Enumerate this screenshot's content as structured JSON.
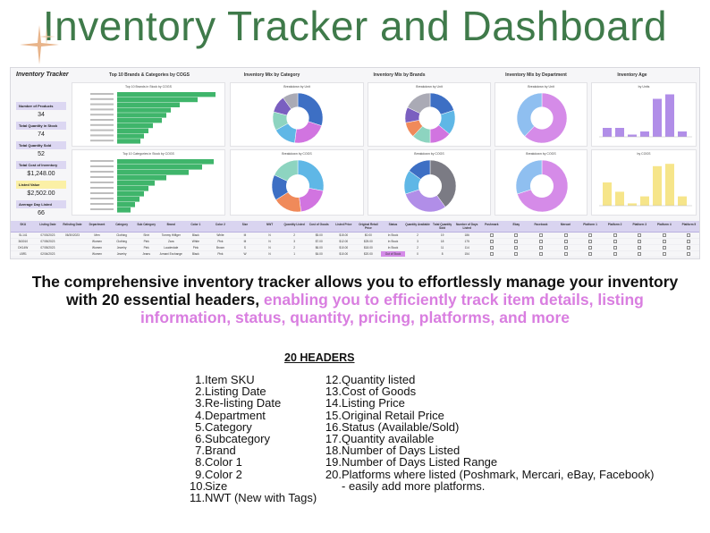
{
  "title": "Inventory Tracker and Dashboard",
  "dashboard": {
    "logo": "Inventory Tracker",
    "panels": [
      "Top 10 Brands & Categories by COGS",
      "Inventory Mix by Category",
      "Inventory Mix by Brands",
      "Inventory Mix by Department",
      "Inventory Age"
    ],
    "kpis": [
      {
        "label": "Number of Products",
        "value": "34",
        "color": "#dcd7f2"
      },
      {
        "label": "Total Quantity in Stock",
        "value": "74",
        "color": "#dcd7f2"
      },
      {
        "label": "Total Quantity Sold",
        "value": "52",
        "color": "#dcd7f2"
      },
      {
        "label": "Total Cost of Inventory",
        "value": "$1,248.00",
        "color": "#dcd7f2"
      },
      {
        "label": "Listed Value",
        "value": "$2,502.00",
        "color": "#fbf0a6"
      },
      {
        "label": "Average Day Listed",
        "value": "66",
        "color": "#dcd7f2"
      }
    ],
    "chart_titles": {
      "brands_bar": "Top 10 Brands in Stock by COGS",
      "categories_bar": "Top 10 Categories in Stock by COGS",
      "unit_pie": "Breakdown by Unit",
      "cogs_pie": "Breakdown by COGS",
      "age_units": "by Units",
      "age_cogs": "by COGS"
    },
    "table_headers": [
      "SKU",
      "Listing Date",
      "Relisting Date",
      "Department",
      "Category",
      "Sub Category",
      "Brand",
      "Color 1",
      "Color 2",
      "Size",
      "NWT",
      "Quantity Listed",
      "Cost of Goods",
      "Listed Price",
      "Original Retail Price",
      "Status",
      "Quantity Available",
      "Total Quantity Sold",
      "Number of Days Listed",
      "Poshmark",
      "Ebay",
      "Facebook",
      "Mercari",
      "Platform 1",
      "Platform 2",
      "Platform 3",
      "Platform 4",
      "Platform 5"
    ],
    "table_rows": [
      [
        "SL141",
        "07/03/2023",
        "06/30/2023",
        "Men",
        "Clothing",
        "Shirt",
        "Tommy Hilfiger",
        "Black",
        "White",
        "M",
        "N",
        "2",
        "$5.00",
        "$15.00",
        "$0.00",
        "In Stock",
        "2",
        "19",
        "186"
      ],
      [
        "363010",
        "07/05/2023",
        "",
        "Women",
        "Clothing",
        "Pink",
        "Zara",
        "White",
        "Pink",
        "M",
        "N",
        "3",
        "$7.00",
        "$12.00",
        "$25.00",
        "In Stock",
        "3",
        "18",
        "175"
      ],
      [
        "DK14W",
        "07/05/2023",
        "",
        "Women",
        "Jewelry",
        "Pink",
        "Lauderdale",
        "Pink",
        "Brown",
        "S",
        "N",
        "2",
        "$6.00",
        "$10.00",
        "$18.00",
        "In Stock",
        "2",
        "11",
        "114"
      ],
      [
        "LBR1",
        "02/04/2023",
        "",
        "Women",
        "Jewelry",
        "Jeans",
        "Armani Exchange",
        "Black",
        "Pink",
        "W",
        "N",
        "1",
        "$4.00",
        "$10.00",
        "$20.00",
        "Out of Stock",
        "0",
        "8",
        "154"
      ],
      [
        "PRM",
        "02/06/2023",
        "",
        "Women",
        "Accessories",
        "Handbag",
        "Coach",
        "Brown",
        "Pink",
        "S",
        "N",
        "2",
        "$5.00",
        "$15.00",
        "$30.00",
        "In Stock",
        "2",
        "8",
        "189"
      ],
      [
        "NLC2",
        "02/18/2023",
        "",
        "Women",
        "Accessories",
        "Shorts",
        "Lacoste",
        "White",
        "Black",
        "M",
        "N",
        "3",
        "$5.00",
        "$12.00",
        "$10.00",
        "In Stock",
        "3",
        "8",
        "185"
      ]
    ]
  },
  "description": {
    "main": "The comprehensive inventory tracker allows you to effortlessly manage your inventory with 20 essential headers, ",
    "highlight": "enabling you to efficiently track item details, listing information, status, quantity, pricing, platforms, and more"
  },
  "headers_title": "20 HEADERS",
  "headers_col1": [
    {
      "n": "1.",
      "t": "Item SKU"
    },
    {
      "n": "2.",
      "t": "Listing Date"
    },
    {
      "n": "3.",
      "t": "Re-listing Date"
    },
    {
      "n": "4.",
      "t": "Department"
    },
    {
      "n": "5.",
      "t": "Category"
    },
    {
      "n": "6.",
      "t": "Subcategory"
    },
    {
      "n": "7.",
      "t": "Brand"
    },
    {
      "n": "8.",
      "t": "Color 1"
    },
    {
      "n": "9.",
      "t": "Color 2"
    },
    {
      "n": "10.",
      "t": "Size"
    },
    {
      "n": "11.",
      "t": "NWT (New with Tags)"
    }
  ],
  "headers_col2": [
    {
      "n": "12.",
      "t": "Quantity listed"
    },
    {
      "n": "13.",
      "t": "Cost of Goods"
    },
    {
      "n": "14.",
      "t": "Listing Price"
    },
    {
      "n": "15.",
      "t": "Original Retail Price"
    },
    {
      "n": "16.",
      "t": "Status (Available/Sold)"
    },
    {
      "n": "17.",
      "t": "Quantity available"
    },
    {
      "n": "18.",
      "t": "Number of Days Listed"
    },
    {
      "n": "19.",
      "t": "Number of Days Listed Range"
    },
    {
      "n": "20.",
      "t": "Platforms where listed (Poshmark, Mercari, eBay, Facebook)"
    },
    {
      "n": "",
      "t": "- easily add more platforms."
    }
  ]
}
